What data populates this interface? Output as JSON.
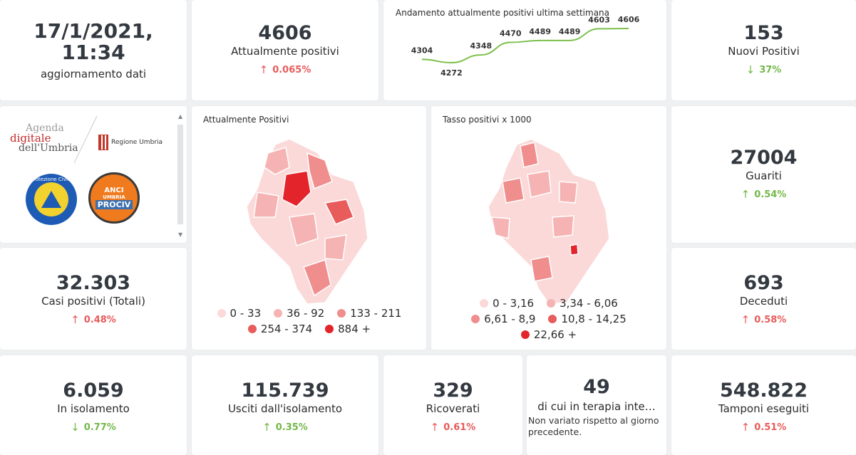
{
  "update": {
    "datetime": "17/1/2021, 11:34",
    "label": "aggiornamento dati"
  },
  "attualmente_positivi": {
    "value": "4606",
    "label": "Attualmente positivi",
    "delta": "0.065%",
    "direction": "up"
  },
  "trend": {
    "title": "Andamento attualmente positivi ultima settimana",
    "values": [
      4304,
      4272,
      4348,
      4470,
      4489,
      4489,
      4603,
      4606
    ],
    "labels": [
      "4304",
      "4272",
      "4348",
      "4470",
      "4489",
      "4489",
      "4603",
      "4606"
    ],
    "color": "#7cbf4a"
  },
  "nuovi_positivi": {
    "value": "153",
    "label": "Nuovi Positivi",
    "delta": "37%",
    "direction": "down"
  },
  "logos": {
    "agenda_line1": "Agenda",
    "agenda_line2": "digitale",
    "agenda_line3": "dell'Umbria",
    "regione": "Regione Umbria",
    "protezione": "Protezione Civile",
    "protezione_sub": "Regione Umbria",
    "anci": "ANCI",
    "anci_sub": "UMBRIA",
    "prociv": "PROCIV"
  },
  "map_positivi": {
    "title": "Attualmente Positivi",
    "legend": [
      {
        "label": "0 - 33",
        "color": "#fbd9d9"
      },
      {
        "label": "36 - 92",
        "color": "#f6b3b3"
      },
      {
        "label": "133 - 211",
        "color": "#f08d8d"
      },
      {
        "label": "254 - 374",
        "color": "#e85c5c"
      },
      {
        "label": "884 +",
        "color": "#e3242b"
      }
    ]
  },
  "map_tasso": {
    "title": "Tasso positivi x 1000",
    "legend": [
      {
        "label": "0 - 3,16",
        "color": "#fbd9d9"
      },
      {
        "label": "3,34 - 6,06",
        "color": "#f6b3b3"
      },
      {
        "label": "6,61 - 8,9",
        "color": "#f08d8d"
      },
      {
        "label": "10,8 - 14,25",
        "color": "#e85c5c"
      },
      {
        "label": "22,66 +",
        "color": "#e3242b"
      }
    ]
  },
  "guariti": {
    "value": "27004",
    "label": "Guariti",
    "delta": "0.54%",
    "direction": "up"
  },
  "casi_totali": {
    "value": "32.303",
    "label": "Casi positivi (Totali)",
    "delta": "0.48%",
    "direction": "up"
  },
  "deceduti": {
    "value": "693",
    "label": "Deceduti",
    "delta": "0.58%",
    "direction": "up"
  },
  "isolamento": {
    "value": "6.059",
    "label": "In isolamento",
    "delta": "0.77%",
    "direction": "down"
  },
  "usciti": {
    "value": "115.739",
    "label": "Usciti dall'isolamento",
    "delta": "0.35%",
    "direction": "up"
  },
  "ricoverati": {
    "value": "329",
    "label": "Ricoverati",
    "delta": "0.61%",
    "direction": "up"
  },
  "terapia": {
    "value": "49",
    "label": "di cui in terapia inte…",
    "note": "Non variato rispetto al giorno precedente."
  },
  "tamponi": {
    "value": "548.822",
    "label": "Tamponi eseguiti",
    "delta": "0.51%",
    "direction": "up"
  },
  "arrows": {
    "up": "↑",
    "down": "↓"
  },
  "colors": {
    "red": "#e85b5b",
    "green": "#74b84a",
    "line": "#7cbf4a"
  }
}
